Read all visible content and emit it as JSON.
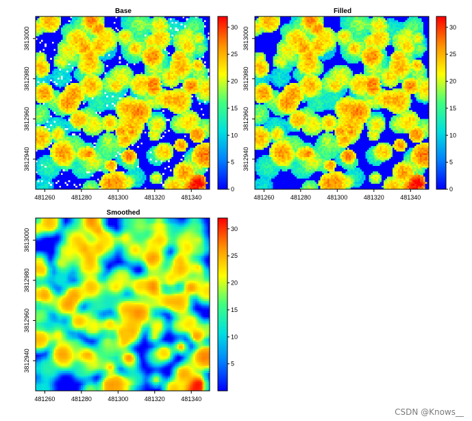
{
  "watermark": "CSDN @Knows__",
  "chart_data": [
    {
      "type": "heatmap",
      "title": "Base",
      "variant": "base",
      "x_ticks": [
        481260,
        481280,
        481300,
        481320,
        481340
      ],
      "y_ticks": [
        3812940,
        3812960,
        3812980,
        3813000
      ],
      "xlim": [
        481255,
        481350
      ],
      "ylim": [
        3812925,
        3813011
      ],
      "colorbar": {
        "ticks": [
          0,
          5,
          10,
          15,
          20,
          25,
          30
        ],
        "range": [
          0,
          32
        ],
        "colors": [
          "#0000ff",
          "#0080ff",
          "#00e0e0",
          "#40ff80",
          "#ffff00",
          "#ff9000",
          "#ff0000"
        ]
      },
      "grid": false,
      "legend": "right"
    },
    {
      "type": "heatmap",
      "title": "Filled",
      "variant": "filled",
      "x_ticks": [
        481260,
        481280,
        481300,
        481320,
        481340
      ],
      "y_ticks": [
        3812940,
        3812960,
        3812980,
        3813000
      ],
      "xlim": [
        481255,
        481350
      ],
      "ylim": [
        3812925,
        3813011
      ],
      "colorbar": {
        "ticks": [
          0,
          5,
          10,
          15,
          20,
          25,
          30
        ],
        "range": [
          0,
          32
        ],
        "colors": [
          "#0000ff",
          "#0080ff",
          "#00e0e0",
          "#40ff80",
          "#ffff00",
          "#ff9000",
          "#ff0000"
        ]
      },
      "grid": false,
      "legend": "right"
    },
    {
      "type": "heatmap",
      "title": "Smoothed",
      "variant": "smoothed",
      "x_ticks": [
        481260,
        481280,
        481300,
        481320,
        481340
      ],
      "y_ticks": [
        3812940,
        3812960,
        3812980,
        3813000
      ],
      "xlim": [
        481255,
        481350
      ],
      "ylim": [
        3812925,
        3813011
      ],
      "colorbar": {
        "ticks": [
          5,
          10,
          15,
          20,
          25,
          30
        ],
        "range": [
          0,
          32
        ],
        "colors": [
          "#0000ff",
          "#0080ff",
          "#00e0e0",
          "#40ff80",
          "#ffff00",
          "#ff9000",
          "#ff0000"
        ]
      },
      "grid": false,
      "legend": "right"
    }
  ]
}
